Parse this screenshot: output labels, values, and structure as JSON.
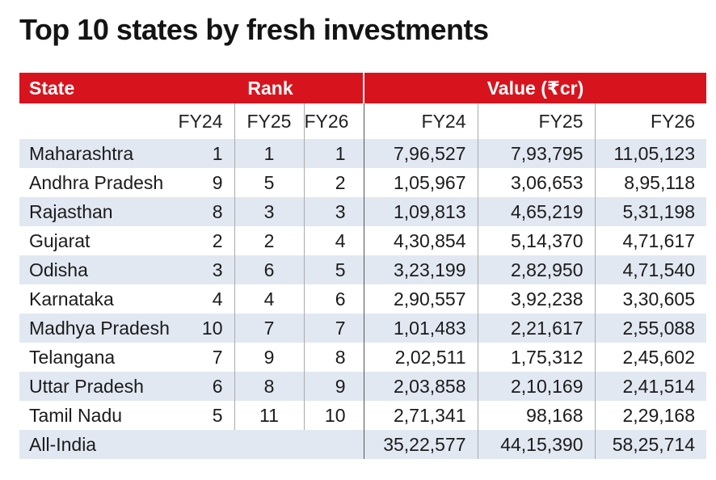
{
  "title": "Top 10 states by fresh investments",
  "header": {
    "state": "State",
    "rank": "Rank",
    "value": "Value (₹cr)"
  },
  "subheader": {
    "rank_fy24": "FY24",
    "rank_fy25": "FY25",
    "rank_fy26": "FY26",
    "value_fy24": "FY24",
    "value_fy25": "FY25",
    "value_fy26": "FY26"
  },
  "rows": [
    {
      "state": "Maharashtra",
      "r24": "1",
      "r25": "1",
      "r26": "1",
      "v24": "7,96,527",
      "v25": "7,93,795",
      "v26": "11,05,123"
    },
    {
      "state": "Andhra Pradesh",
      "r24": "9",
      "r25": "5",
      "r26": "2",
      "v24": "1,05,967",
      "v25": "3,06,653",
      "v26": "8,95,118"
    },
    {
      "state": "Rajasthan",
      "r24": "8",
      "r25": "3",
      "r26": "3",
      "v24": "1,09,813",
      "v25": "4,65,219",
      "v26": "5,31,198"
    },
    {
      "state": "Gujarat",
      "r24": "2",
      "r25": "2",
      "r26": "4",
      "v24": "4,30,854",
      "v25": "5,14,370",
      "v26": "4,71,617"
    },
    {
      "state": "Odisha",
      "r24": "3",
      "r25": "6",
      "r26": "5",
      "v24": "3,23,199",
      "v25": "2,82,950",
      "v26": "4,71,540"
    },
    {
      "state": "Karnataka",
      "r24": "4",
      "r25": "4",
      "r26": "6",
      "v24": "2,90,557",
      "v25": "3,92,238",
      "v26": "3,30,605"
    },
    {
      "state": "Madhya Pradesh",
      "r24": "10",
      "r25": "7",
      "r26": "7",
      "v24": "1,01,483",
      "v25": "2,21,617",
      "v26": "2,55,088"
    },
    {
      "state": "Telangana",
      "r24": "7",
      "r25": "9",
      "r26": "8",
      "v24": "2,02,511",
      "v25": "1,75,312",
      "v26": "2,45,602"
    },
    {
      "state": "Uttar Pradesh",
      "r24": "6",
      "r25": "8",
      "r26": "9",
      "v24": "2,03,858",
      "v25": "2,10,169",
      "v26": "2,41,514"
    },
    {
      "state": "Tamil Nadu",
      "r24": "5",
      "r25": "11",
      "r26": "10",
      "v24": "2,71,341",
      "v25": "98,168",
      "v26": "2,29,168"
    }
  ],
  "total": {
    "state": "All-India",
    "v24": "35,22,577",
    "v25": "44,15,390",
    "v26": "58,25,714"
  },
  "chart_data": {
    "type": "table",
    "title": "Top 10 states by fresh investments",
    "columns": [
      "State",
      "Rank FY24",
      "Rank FY25",
      "Rank FY26",
      "Value (₹cr) FY24",
      "Value (₹cr) FY25",
      "Value (₹cr) FY26"
    ],
    "rows": [
      [
        "Maharashtra",
        1,
        1,
        1,
        796527,
        793795,
        1105123
      ],
      [
        "Andhra Pradesh",
        9,
        5,
        2,
        105967,
        306653,
        895118
      ],
      [
        "Rajasthan",
        8,
        3,
        3,
        109813,
        465219,
        531198
      ],
      [
        "Gujarat",
        2,
        2,
        4,
        430854,
        514370,
        471617
      ],
      [
        "Odisha",
        3,
        6,
        5,
        323199,
        282950,
        471540
      ],
      [
        "Karnataka",
        4,
        4,
        6,
        290557,
        392238,
        330605
      ],
      [
        "Madhya Pradesh",
        10,
        7,
        7,
        101483,
        221617,
        255088
      ],
      [
        "Telangana",
        7,
        9,
        8,
        202511,
        175312,
        245602
      ],
      [
        "Uttar Pradesh",
        6,
        8,
        9,
        203858,
        210169,
        241514
      ],
      [
        "Tamil Nadu",
        5,
        11,
        10,
        271341,
        98168,
        229168
      ],
      [
        "All-India",
        null,
        null,
        null,
        3522577,
        4415390,
        5825714
      ]
    ],
    "header_color": "#d7141d",
    "stripe_color": "#e2e8f2"
  }
}
